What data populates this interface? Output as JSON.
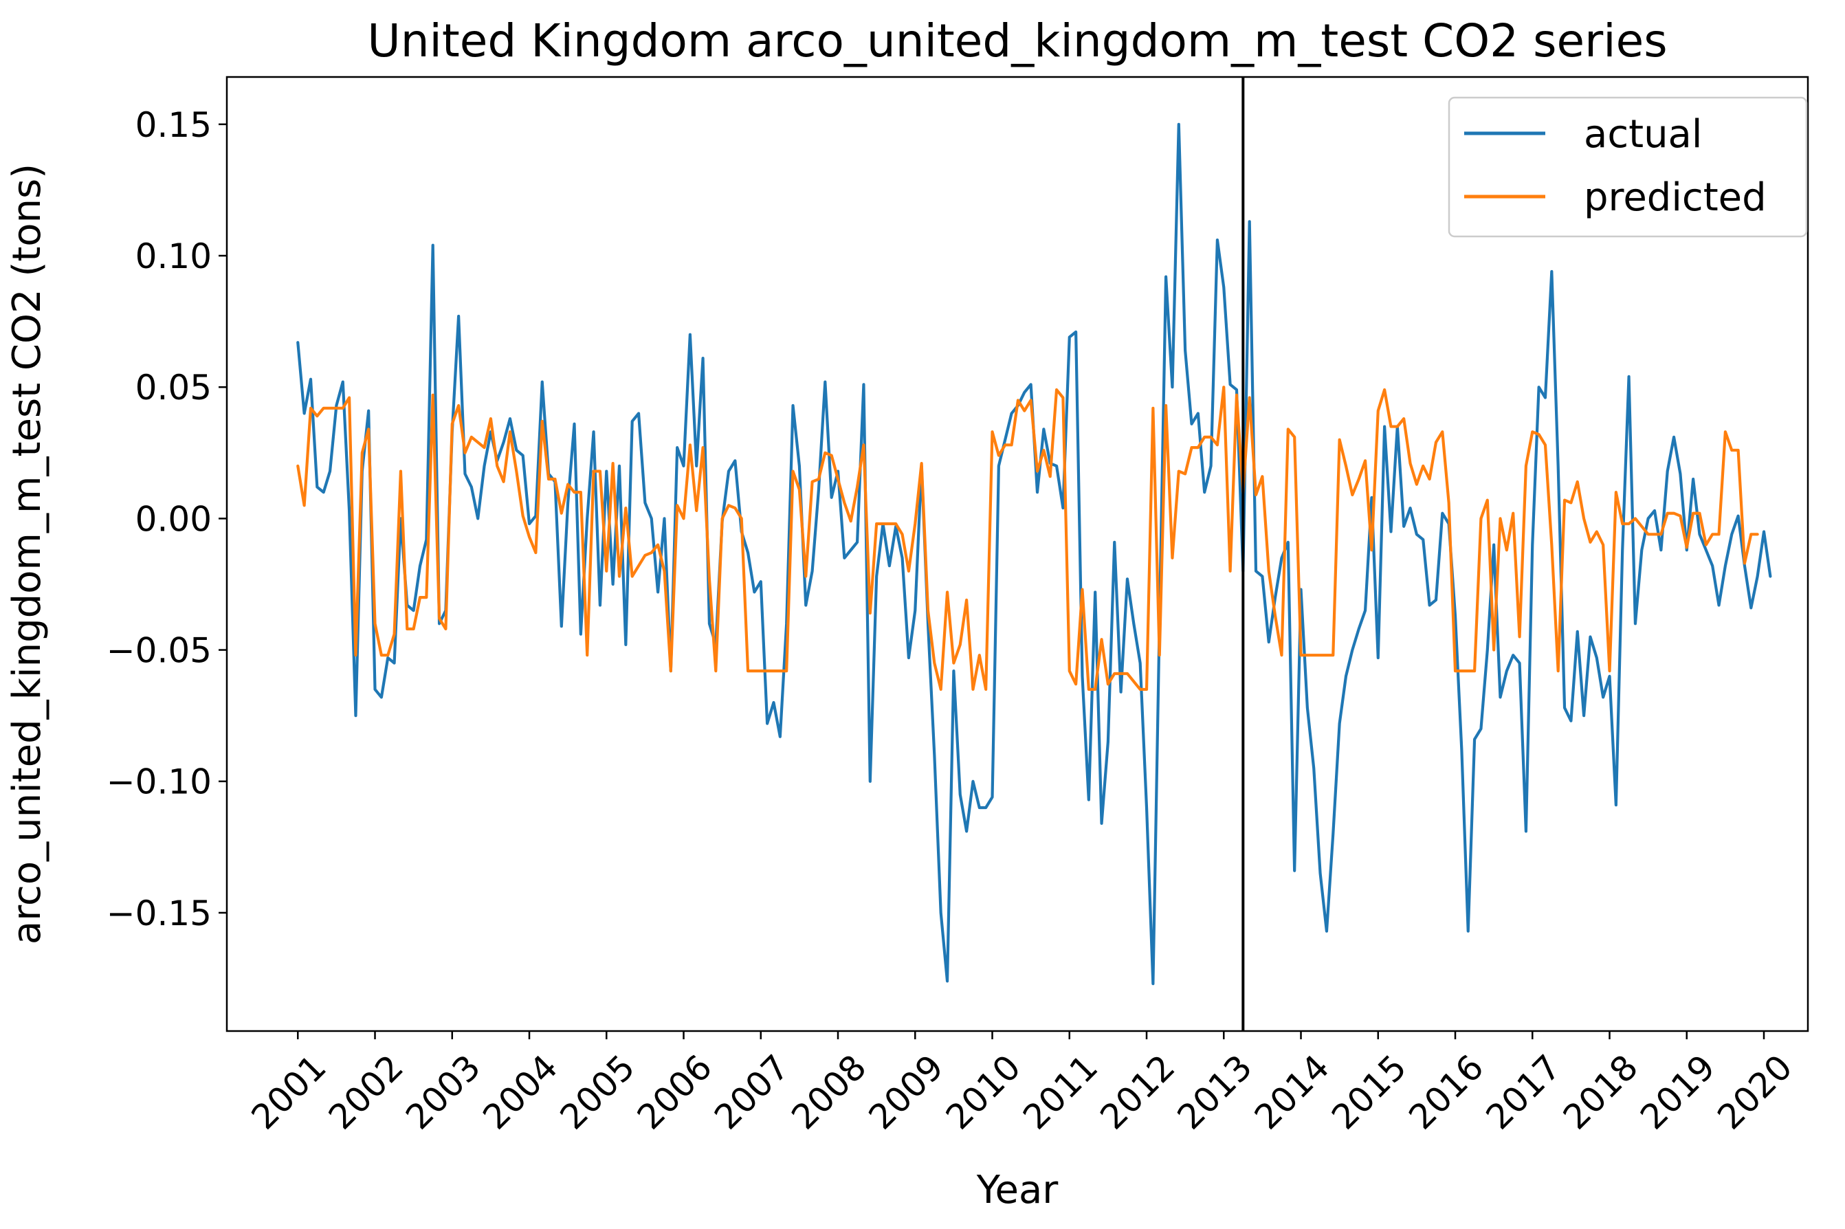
{
  "chart_data": {
    "type": "line",
    "title": "United Kingdom arco_united_kingdom_m_test CO2 series",
    "xlabel": "Year",
    "ylabel": "arco_united_kingdom_m_test CO2 (tons)",
    "xlim": [
      2000.08,
      2020.57
    ],
    "ylim": [
      -0.195,
      0.168
    ],
    "x_ticks": [
      2001,
      2002,
      2003,
      2004,
      2005,
      2006,
      2007,
      2008,
      2009,
      2010,
      2011,
      2012,
      2013,
      2014,
      2015,
      2016,
      2017,
      2018,
      2019,
      2020
    ],
    "y_ticks": [
      {
        "value": -0.15,
        "label": "−0.15"
      },
      {
        "value": -0.1,
        "label": "−0.10"
      },
      {
        "value": -0.05,
        "label": "−0.05"
      },
      {
        "value": 0.0,
        "label": "0.00"
      },
      {
        "value": 0.05,
        "label": "0.05"
      },
      {
        "value": 0.1,
        "label": "0.10"
      },
      {
        "value": 0.15,
        "label": "0.15"
      }
    ],
    "split_line_x": 2013.25,
    "legend": {
      "placement": "top-right"
    },
    "grid": false,
    "x_start_year": 2001,
    "series": [
      {
        "name": "actual",
        "color": "#1f77b4",
        "values": [
          0.067,
          0.04,
          0.053,
          0.012,
          0.01,
          0.018,
          0.043,
          0.052,
          0.003,
          -0.075,
          0.018,
          0.041,
          -0.065,
          -0.068,
          -0.053,
          -0.055,
          0.0,
          -0.033,
          -0.035,
          -0.018,
          -0.008,
          0.104,
          -0.04,
          -0.035,
          0.033,
          0.077,
          0.017,
          0.012,
          0.0,
          0.02,
          0.033,
          0.022,
          0.029,
          0.038,
          0.026,
          0.024,
          -0.002,
          0.001,
          0.052,
          0.017,
          0.014,
          -0.041,
          0.006,
          0.036,
          -0.044,
          0.0,
          0.033,
          -0.033,
          0.018,
          -0.025,
          0.02,
          -0.048,
          0.037,
          0.04,
          0.006,
          0.0,
          -0.028,
          0.0,
          -0.058,
          0.027,
          0.02,
          0.07,
          0.02,
          0.061,
          -0.04,
          -0.048,
          -0.001,
          0.018,
          0.022,
          -0.005,
          -0.013,
          -0.028,
          -0.024,
          -0.078,
          -0.07,
          -0.083,
          -0.04,
          0.043,
          0.02,
          -0.033,
          -0.02,
          0.011,
          0.052,
          0.008,
          0.018,
          -0.015,
          -0.012,
          -0.009,
          0.051,
          -0.1,
          -0.022,
          -0.002,
          -0.018,
          -0.003,
          -0.015,
          -0.053,
          -0.035,
          0.02,
          -0.04,
          -0.09,
          -0.15,
          -0.176,
          -0.058,
          -0.105,
          -0.119,
          -0.1,
          -0.11,
          -0.11,
          -0.106,
          0.02,
          0.03,
          0.04,
          0.043,
          0.048,
          0.051,
          0.01,
          0.034,
          0.021,
          0.02,
          0.004,
          0.069,
          0.071,
          -0.06,
          -0.107,
          -0.028,
          -0.116,
          -0.085,
          -0.009,
          -0.066,
          -0.023,
          -0.04,
          -0.055,
          -0.11,
          -0.177,
          -0.04,
          0.092,
          0.05,
          0.15,
          0.064,
          0.036,
          0.04,
          0.01,
          0.02,
          0.106,
          0.088,
          0.051,
          0.049,
          -0.02,
          0.113,
          -0.02,
          -0.022,
          -0.047,
          -0.03,
          -0.015,
          -0.009,
          -0.134,
          -0.027,
          -0.072,
          -0.095,
          -0.135,
          -0.157,
          -0.12,
          -0.078,
          -0.06,
          -0.05,
          -0.042,
          -0.035,
          0.008,
          -0.053,
          0.035,
          -0.005,
          0.035,
          -0.003,
          0.004,
          -0.006,
          -0.008,
          -0.033,
          -0.031,
          0.002,
          -0.002,
          -0.037,
          -0.088,
          -0.157,
          -0.084,
          -0.08,
          -0.05,
          -0.01,
          -0.068,
          -0.058,
          -0.052,
          -0.055,
          -0.119,
          -0.01,
          0.05,
          0.046,
          0.094,
          0.02,
          -0.072,
          -0.077,
          -0.043,
          -0.075,
          -0.045,
          -0.053,
          -0.068,
          -0.06,
          -0.109,
          -0.012,
          0.054,
          -0.04,
          -0.012,
          0.0,
          0.003,
          -0.012,
          0.018,
          0.031,
          0.017,
          -0.012,
          0.015,
          -0.006,
          -0.012,
          -0.018,
          -0.033,
          -0.018,
          -0.006,
          0.001,
          -0.018,
          -0.034,
          -0.022,
          -0.005,
          -0.022
        ]
      },
      {
        "name": "predicted",
        "color": "#ff7f0e",
        "values": [
          0.02,
          0.005,
          0.042,
          0.039,
          0.042,
          0.042,
          0.042,
          0.042,
          0.046,
          -0.052,
          0.025,
          0.034,
          -0.04,
          -0.052,
          -0.052,
          -0.044,
          0.018,
          -0.042,
          -0.042,
          -0.03,
          -0.03,
          0.047,
          -0.038,
          -0.042,
          0.036,
          0.043,
          0.025,
          0.031,
          0.029,
          0.027,
          0.038,
          0.02,
          0.014,
          0.033,
          0.018,
          0.001,
          -0.007,
          -0.013,
          0.037,
          0.015,
          0.015,
          0.002,
          0.013,
          0.01,
          0.01,
          -0.052,
          0.018,
          0.018,
          -0.02,
          0.021,
          -0.022,
          0.004,
          -0.022,
          -0.018,
          -0.014,
          -0.013,
          -0.01,
          -0.02,
          -0.058,
          0.005,
          0.0,
          0.028,
          0.003,
          0.027,
          -0.023,
          -0.058,
          0.0,
          0.005,
          0.004,
          0.0,
          -0.058,
          -0.058,
          -0.058,
          -0.058,
          -0.058,
          -0.058,
          -0.058,
          0.018,
          0.011,
          -0.022,
          0.014,
          0.015,
          0.025,
          0.024,
          0.015,
          0.006,
          -0.001,
          0.012,
          0.028,
          -0.036,
          -0.002,
          -0.002,
          -0.002,
          -0.002,
          -0.006,
          -0.02,
          -0.002,
          0.021,
          -0.035,
          -0.055,
          -0.065,
          -0.028,
          -0.055,
          -0.048,
          -0.031,
          -0.065,
          -0.052,
          -0.065,
          0.033,
          0.024,
          0.028,
          0.028,
          0.045,
          0.041,
          0.045,
          0.018,
          0.026,
          0.016,
          0.049,
          0.046,
          -0.058,
          -0.063,
          -0.027,
          -0.065,
          -0.065,
          -0.046,
          -0.063,
          -0.059,
          -0.059,
          -0.059,
          -0.062,
          -0.065,
          -0.065,
          0.042,
          -0.052,
          0.043,
          -0.015,
          0.018,
          0.017,
          0.027,
          0.027,
          0.031,
          0.031,
          0.028,
          0.05,
          -0.02,
          0.047,
          0.01,
          0.046,
          0.009,
          0.016,
          -0.02,
          -0.037,
          -0.052,
          0.034,
          0.031,
          -0.052,
          -0.052,
          -0.052,
          -0.052,
          -0.052,
          -0.052,
          0.03,
          0.02,
          0.009,
          0.015,
          0.022,
          -0.012,
          0.041,
          0.049,
          0.035,
          0.035,
          0.038,
          0.021,
          0.013,
          0.02,
          0.015,
          0.029,
          0.033,
          0.006,
          -0.058,
          -0.058,
          -0.058,
          -0.058,
          0.0,
          0.007,
          -0.05,
          0.0,
          -0.012,
          0.002,
          -0.045,
          0.02,
          0.033,
          0.032,
          0.028,
          -0.01,
          -0.058,
          0.007,
          0.006,
          0.014,
          0.0,
          -0.009,
          -0.005,
          -0.01,
          -0.058,
          0.01,
          -0.002,
          -0.002,
          0.0,
          -0.003,
          -0.006,
          -0.006,
          -0.006,
          0.002,
          0.002,
          0.001,
          -0.011,
          0.002,
          0.002,
          -0.01,
          -0.006,
          -0.006,
          0.033,
          0.026,
          0.026,
          -0.017,
          -0.006,
          -0.006
        ]
      }
    ]
  }
}
